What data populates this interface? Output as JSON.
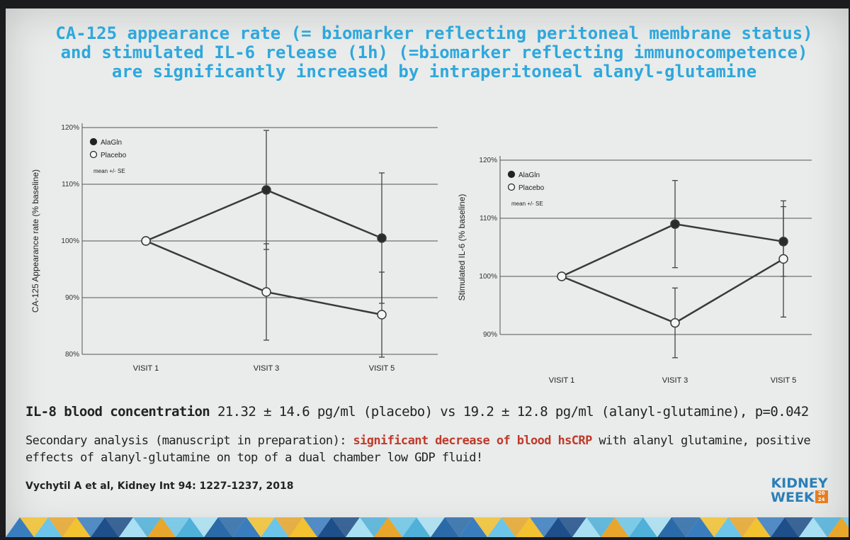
{
  "slide": {
    "title_lines": [
      "CA-125 appearance rate (= biomarker reflecting peritoneal membrane status)",
      "and stimulated IL-6 release (1h) (=biomarker reflecting immunocompetence)",
      "are significantly increased by intraperitoneal alanyl-glutamine"
    ],
    "il8": {
      "label": "IL-8 blood concentration",
      "text": " 21.32 ± 14.6 pg/ml (placebo) vs 19.2 ± 12.8 pg/ml (alanyl-glutamine), p=0.042"
    },
    "secondary": {
      "prefix": "Secondary analysis (manuscript in preparation): ",
      "highlight": "significant decrease of blood hsCRP",
      "suffix": " with alanyl glutamine, positive effects of alanyl-glutamine on top of a dual chamber low GDP fluid!"
    },
    "citation": "Vychytil A et al, Kidney Int 94: 1227-1237, 2018",
    "logo": {
      "line1": "KIDNEY",
      "line2": "WEEK",
      "year_top": "20",
      "year_bottom": "24"
    }
  },
  "colors": {
    "title": "#2fa7dd",
    "highlight": "#c0392b",
    "logo": "#2c7fb8"
  },
  "chart_data": [
    {
      "type": "line",
      "title": "",
      "xlabel": "",
      "ylabel": "CA-125 Appearance rate (% baseline)",
      "categories": [
        "VISIT 1",
        "VISIT 3",
        "VISIT 5"
      ],
      "ylim": [
        80,
        120
      ],
      "yticks": [
        "80%",
        "90%",
        "100%",
        "110%",
        "120%"
      ],
      "legend": {
        "items": [
          "AlaGln",
          "Placebo"
        ],
        "note": "mean +/- SE",
        "position": "top-left"
      },
      "series": [
        {
          "name": "AlaGln",
          "marker": "filled",
          "values": [
            100,
            109,
            100.5
          ],
          "se": [
            0,
            10.5,
            11.5
          ]
        },
        {
          "name": "Placebo",
          "marker": "open",
          "values": [
            100,
            91,
            87
          ],
          "se": [
            0,
            8.5,
            7.5
          ]
        }
      ]
    },
    {
      "type": "line",
      "title": "",
      "xlabel": "",
      "ylabel": "Stimulated IL-6 (% baseline)",
      "categories": [
        "VISIT 1",
        "VISIT 3",
        "VISIT 5"
      ],
      "ylim": [
        90,
        120
      ],
      "yticks": [
        "90%",
        "100%",
        "110%",
        "120%"
      ],
      "legend": {
        "items": [
          "AlaGln",
          "Placebo"
        ],
        "note": "mean +/- SE",
        "position": "top-left"
      },
      "series": [
        {
          "name": "AlaGln",
          "marker": "filled",
          "values": [
            100,
            109,
            106
          ],
          "se": [
            0,
            7.5,
            6
          ]
        },
        {
          "name": "Placebo",
          "marker": "open",
          "values": [
            100,
            92,
            103
          ],
          "se": [
            0,
            6,
            10
          ]
        }
      ]
    }
  ]
}
